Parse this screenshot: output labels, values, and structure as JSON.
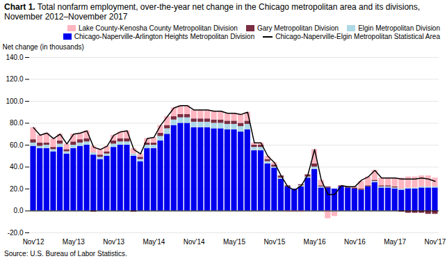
{
  "chart_data": {
    "type": "bar",
    "stacked": true,
    "title": "Chart 1.",
    "subtitle": "Total nonfarm employment, over-the-year net change in the Chicago metropolitan area and its divisions,  November 2012–November 2017",
    "ylabel": "Net change (in thousands)",
    "source": "Source: U.S. Bureau of Labor Statistics.",
    "ylim": [
      -20,
      140
    ],
    "yticks": [
      {
        "value": -20,
        "label": "-20.0"
      },
      {
        "value": 0,
        "label": "0.0"
      },
      {
        "value": 20,
        "label": "20.0"
      },
      {
        "value": 40,
        "label": "40.0"
      },
      {
        "value": 60,
        "label": "60.0"
      },
      {
        "value": 80,
        "label": "80.0"
      },
      {
        "value": 100,
        "label": "100.0"
      },
      {
        "value": 120,
        "label": "120.0"
      },
      {
        "value": 140,
        "label": "140.0"
      }
    ],
    "grid": true,
    "legend": "upper right",
    "categories": [
      "Nov'12",
      null,
      null,
      null,
      null,
      null,
      "May'13",
      null,
      null,
      null,
      null,
      null,
      "Nov'13",
      null,
      null,
      null,
      null,
      null,
      "May'14",
      null,
      null,
      null,
      null,
      null,
      "Nov'14",
      null,
      null,
      null,
      null,
      null,
      "May'15",
      null,
      null,
      null,
      null,
      null,
      "Nov'15",
      null,
      null,
      null,
      null,
      null,
      "May'16",
      null,
      null,
      null,
      null,
      null,
      "Nov'16",
      null,
      null,
      null,
      null,
      null,
      "May'17",
      null,
      null,
      null,
      null,
      null,
      "Nov'17"
    ],
    "series": [
      {
        "name": "Chicago-Naperville-Arlington Heights Metropolitan Division",
        "color": "#0000EE",
        "type": "bar",
        "values": [
          59,
          57,
          57,
          54,
          58,
          52,
          57,
          59,
          60,
          51,
          47,
          50,
          58,
          60,
          60,
          50,
          45,
          57,
          57,
          64,
          70,
          78,
          80,
          80,
          76,
          76,
          76,
          75,
          75,
          74,
          74,
          72,
          74,
          55,
          55,
          43,
          39,
          29,
          22,
          20,
          22,
          30,
          38,
          21,
          21,
          20,
          22,
          21,
          20,
          19,
          22,
          26,
          21,
          21,
          20,
          19,
          20,
          20,
          21,
          21,
          21
        ]
      },
      {
        "name": "Elgin Metropolitan Division",
        "color": "#ADD8E6",
        "type": "bar",
        "values": [
          3,
          2,
          3,
          2,
          3,
          2,
          3,
          3,
          3,
          2,
          2,
          2,
          3,
          3,
          3,
          2,
          2,
          3,
          3,
          4,
          5,
          5,
          5,
          5,
          5,
          5,
          5,
          5,
          5,
          5,
          5,
          5,
          5,
          3,
          3,
          2,
          1,
          1,
          0,
          0,
          1,
          1,
          2,
          1,
          0,
          -1,
          0,
          0,
          0,
          0,
          0,
          1,
          1,
          1,
          1,
          1,
          1,
          1,
          1,
          1,
          1
        ]
      },
      {
        "name": "Gary Metropolitan Division",
        "color": "#7B2D42",
        "type": "bar",
        "values": [
          3,
          3,
          2,
          2,
          3,
          2,
          3,
          3,
          3,
          -1,
          2,
          2,
          3,
          3,
          3,
          -1,
          2,
          2,
          2,
          3,
          3,
          3,
          3,
          3,
          3,
          3,
          3,
          3,
          3,
          3,
          3,
          3,
          3,
          2,
          2,
          2,
          2,
          2,
          1,
          0,
          1,
          2,
          3,
          1,
          1,
          0,
          1,
          1,
          1,
          1,
          1,
          1,
          1,
          1,
          1,
          -1,
          -2,
          -2,
          -2,
          -3,
          -3
        ]
      },
      {
        "name": "Lake County-Kenosha County Metropolitan Division",
        "color": "#FFB6C1",
        "type": "bar",
        "values": [
          11,
          7,
          9,
          8,
          6,
          5,
          7,
          6,
          7,
          6,
          5,
          5,
          5,
          6,
          7,
          5,
          3,
          4,
          5,
          7,
          8,
          8,
          8,
          8,
          8,
          8,
          8,
          8,
          8,
          7,
          7,
          8,
          8,
          2,
          2,
          3,
          2,
          0,
          -1,
          -1,
          -1,
          0,
          13,
          5,
          -7,
          -4,
          0,
          0,
          1,
          7,
          8,
          9,
          7,
          7,
          8,
          10,
          10,
          10,
          10,
          10,
          8
        ]
      },
      {
        "name": "Chicago-Naperville-Elgin Metropolitan Statistical Area",
        "color": "#000000",
        "type": "line",
        "values": [
          76,
          69,
          71,
          66,
          70,
          61,
          70,
          71,
          73,
          58,
          56,
          59,
          69,
          72,
          73,
          56,
          52,
          66,
          67,
          78,
          86,
          94,
          96,
          96,
          92,
          92,
          92,
          91,
          91,
          89,
          89,
          88,
          90,
          62,
          62,
          50,
          44,
          32,
          22,
          19,
          23,
          33,
          56,
          28,
          15,
          15,
          23,
          22,
          22,
          28,
          31,
          37,
          30,
          30,
          30,
          29,
          29,
          29,
          30,
          29,
          27
        ]
      }
    ]
  }
}
